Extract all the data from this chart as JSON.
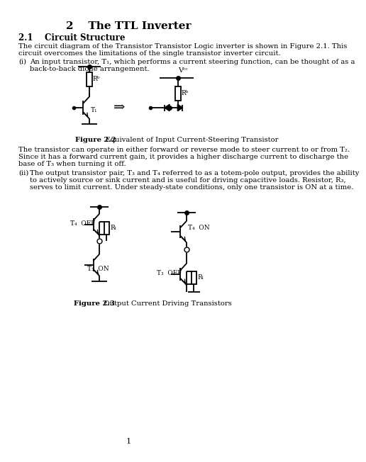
{
  "title": "2    The TTL Inverter",
  "section": "2.1    Circuit Structure",
  "para1": "The circuit diagram of the Transistor Transistor Logic inverter is shown in Figure 2.1. This",
  "para1b": "circuit overcomes the limitations of the single transistor inverter circuit.",
  "item_i_label": "(i)",
  "item_i_text": "An input transistor, T₁, which performs a current steering function, can be thought of as a",
  "item_i_text2": "back-to-back diode arrangement.",
  "fig22_bold": "Figure 2.2",
  "fig22_rest": "   Equivalent of Input Current-Steering Transistor",
  "para2": "The transistor can operate in either forward or reverse mode to steer current to or from T₂.",
  "para2b": "Since it has a forward current gain, it provides a higher discharge current to discharge the",
  "para2c": "base of T₃ when turning it off.",
  "item_ii_label": "(ii)",
  "item_ii_text": "The output transistor pair, T₃ and T₄ referred to as a totem-pole output, provides the ability",
  "item_ii_text2": "to actively source or sink current and is useful for driving capacitive loads. Resistor, R₃,",
  "item_ii_text3": "serves to limit current. Under steady-state conditions, only one transistor is ON at a time.",
  "fig23_bold": "Figure 2.3",
  "fig23_rest": "   Output Current Driving Transistors",
  "page_num": "1",
  "bg_color": "#ffffff",
  "text_color": "#000000"
}
